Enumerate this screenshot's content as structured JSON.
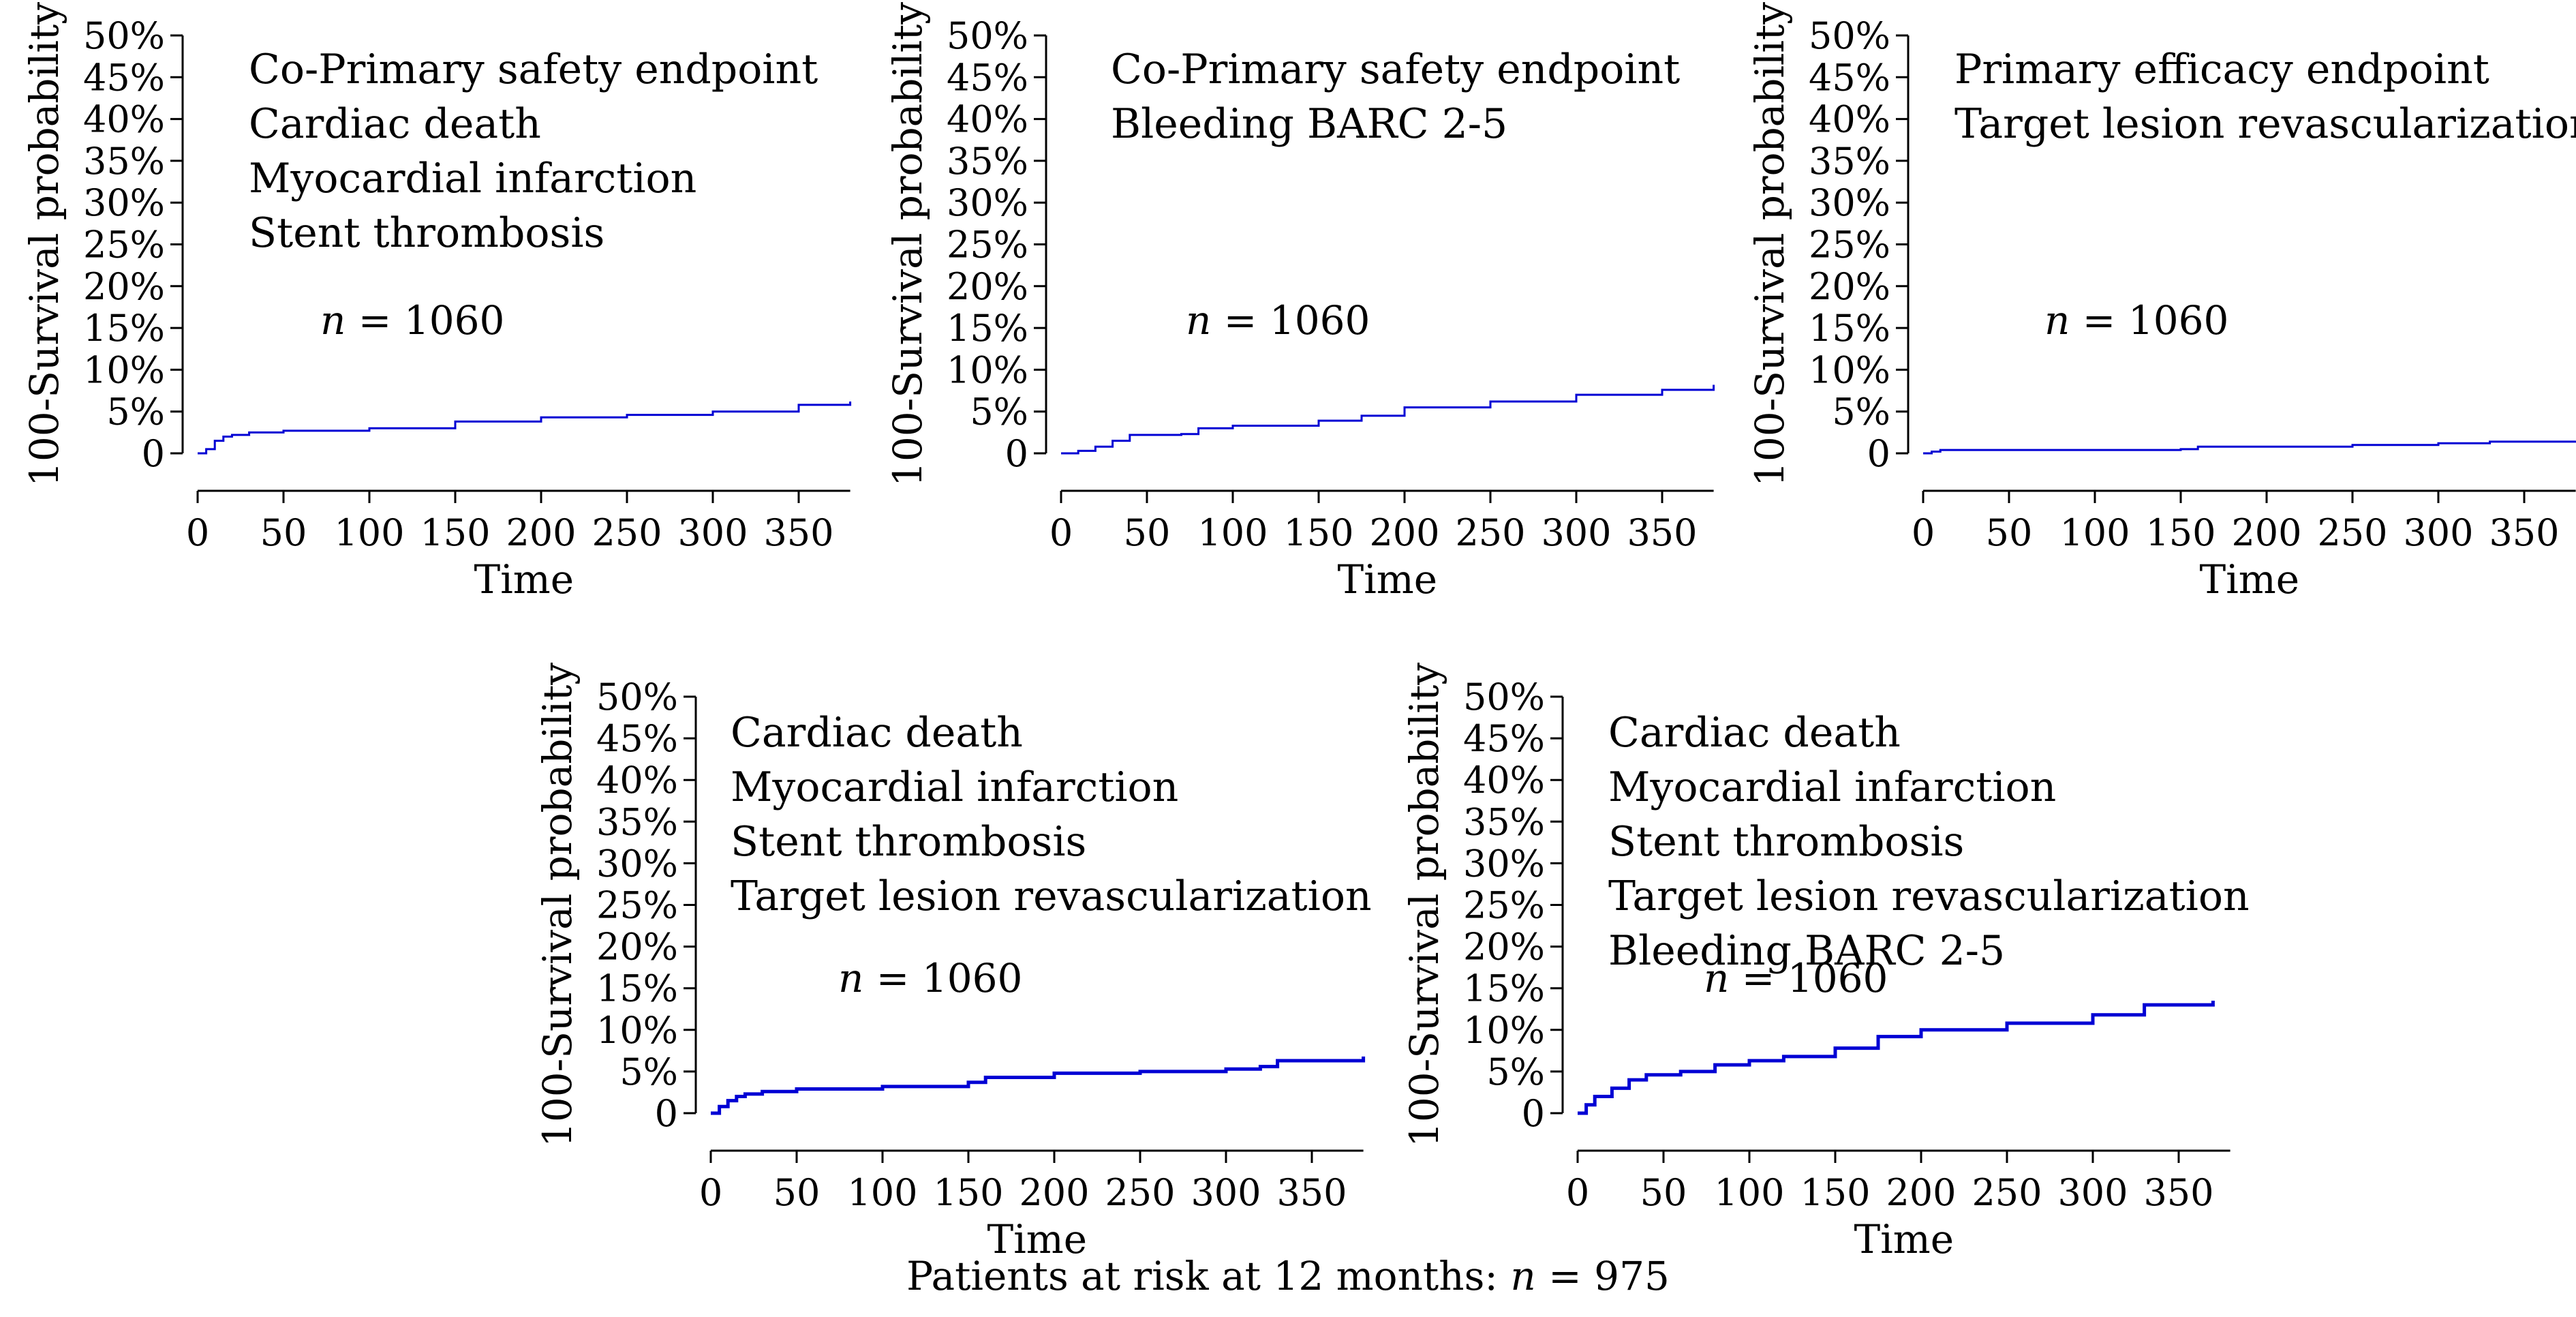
{
  "chart_data": [
    {
      "type": "line",
      "title": "Co-Primary safety endpoint",
      "annotation_lines": [
        "Co-Primary safety endpoint",
        "Cardiac death",
        "Myocardial infarction",
        "Stent thrombosis"
      ],
      "n_prefix": "n",
      "n_value": "= 1060",
      "xlabel": "Time",
      "ylabel": "100-Survival probability",
      "xlim": [
        0,
        380
      ],
      "ylim": [
        0,
        50
      ],
      "xticks": [
        "0",
        "50",
        "100",
        "150",
        "200",
        "250",
        "300",
        "350"
      ],
      "yticks": [
        "0",
        "5%",
        "10%",
        "15%",
        "20%",
        "25%",
        "30%",
        "35%",
        "40%",
        "45%",
        "50%"
      ],
      "x": [
        0,
        5,
        10,
        15,
        20,
        30,
        50,
        100,
        150,
        200,
        250,
        300,
        350,
        380
      ],
      "y": [
        0,
        0.5,
        1.5,
        2.0,
        2.2,
        2.5,
        2.7,
        3.0,
        3.8,
        4.3,
        4.6,
        5.0,
        5.8,
        6.2
      ]
    },
    {
      "type": "line",
      "title": "Co-Primary safety endpoint",
      "annotation_lines": [
        "Co-Primary safety endpoint",
        "Bleeding BARC 2-5"
      ],
      "n_prefix": "n",
      "n_value": "= 1060",
      "xlabel": "Time",
      "ylabel": "100-Survival probability",
      "xlim": [
        0,
        380
      ],
      "ylim": [
        0,
        50
      ],
      "xticks": [
        "0",
        "50",
        "100",
        "150",
        "200",
        "250",
        "300",
        "350"
      ],
      "yticks": [
        "0",
        "5%",
        "10%",
        "15%",
        "20%",
        "25%",
        "30%",
        "35%",
        "40%",
        "45%",
        "50%"
      ],
      "x": [
        0,
        10,
        20,
        30,
        40,
        70,
        80,
        100,
        150,
        175,
        200,
        250,
        300,
        350,
        380
      ],
      "y": [
        0,
        0.3,
        0.8,
        1.5,
        2.2,
        2.3,
        3.0,
        3.3,
        3.9,
        4.5,
        5.5,
        6.2,
        7.0,
        7.6,
        8.2
      ]
    },
    {
      "type": "line",
      "title": "Primary efficacy endpoint",
      "annotation_lines": [
        "Primary efficacy endpoint",
        "Target lesion revascularization"
      ],
      "n_prefix": "n",
      "n_value": "= 1060",
      "xlabel": "Time",
      "ylabel": "100-Survival probability",
      "xlim": [
        0,
        380
      ],
      "ylim": [
        0,
        50
      ],
      "xticks": [
        "0",
        "50",
        "100",
        "150",
        "200",
        "250",
        "300",
        "350"
      ],
      "yticks": [
        "0",
        "5%",
        "10%",
        "15%",
        "20%",
        "25%",
        "30%",
        "35%",
        "40%",
        "45%",
        "50%"
      ],
      "x": [
        0,
        5,
        10,
        50,
        100,
        150,
        160,
        200,
        250,
        300,
        330,
        380
      ],
      "y": [
        0,
        0.2,
        0.4,
        0.4,
        0.4,
        0.5,
        0.8,
        0.8,
        1.0,
        1.2,
        1.4,
        1.5
      ]
    },
    {
      "type": "line",
      "title": "Cardiac death",
      "annotation_lines": [
        "Cardiac death",
        "Myocardial infarction",
        "Stent thrombosis",
        "Target lesion revascularization"
      ],
      "n_prefix": "n",
      "n_value": "= 1060",
      "xlabel": "Time",
      "ylabel": "100-Survival probability",
      "xlim": [
        0,
        380
      ],
      "ylim": [
        0,
        50
      ],
      "xticks": [
        "0",
        "50",
        "100",
        "150",
        "200",
        "250",
        "300",
        "350"
      ],
      "yticks": [
        "0",
        "5%",
        "10%",
        "15%",
        "20%",
        "25%",
        "30%",
        "35%",
        "40%",
        "45%",
        "50%"
      ],
      "x": [
        0,
        5,
        10,
        15,
        20,
        30,
        50,
        100,
        150,
        160,
        200,
        250,
        300,
        320,
        330,
        380
      ],
      "y": [
        0,
        0.8,
        1.5,
        2.0,
        2.3,
        2.6,
        2.9,
        3.2,
        3.7,
        4.3,
        4.8,
        5.0,
        5.3,
        5.6,
        6.3,
        6.8
      ]
    },
    {
      "type": "line",
      "title": "Cardiac death",
      "annotation_lines": [
        "Cardiac death",
        "Myocardial infarction",
        "Stent thrombosis",
        "Target lesion revascularization",
        "Bleeding BARC 2-5"
      ],
      "n_prefix": "n",
      "n_value": "= 1060",
      "xlabel": "Time",
      "ylabel": "100-Survival probability",
      "xlim": [
        0,
        380
      ],
      "ylim": [
        0,
        50
      ],
      "xticks": [
        "0",
        "50",
        "100",
        "150",
        "200",
        "250",
        "300",
        "350"
      ],
      "yticks": [
        "0",
        "5%",
        "10%",
        "15%",
        "20%",
        "25%",
        "30%",
        "35%",
        "40%",
        "45%",
        "50%"
      ],
      "x": [
        0,
        5,
        10,
        20,
        30,
        40,
        60,
        80,
        100,
        120,
        150,
        175,
        200,
        250,
        300,
        330,
        370
      ],
      "y": [
        0,
        1.0,
        2.0,
        3.0,
        4.0,
        4.6,
        5.0,
        5.8,
        6.3,
        6.8,
        7.8,
        9.2,
        10.0,
        10.8,
        11.8,
        13.0,
        13.5
      ]
    }
  ],
  "footer": {
    "prefix": "Patients at risk at 12 months:",
    "n": "n",
    "value": "= 975"
  },
  "colors": {
    "series": "#0000d4",
    "axis": "#000000"
  }
}
